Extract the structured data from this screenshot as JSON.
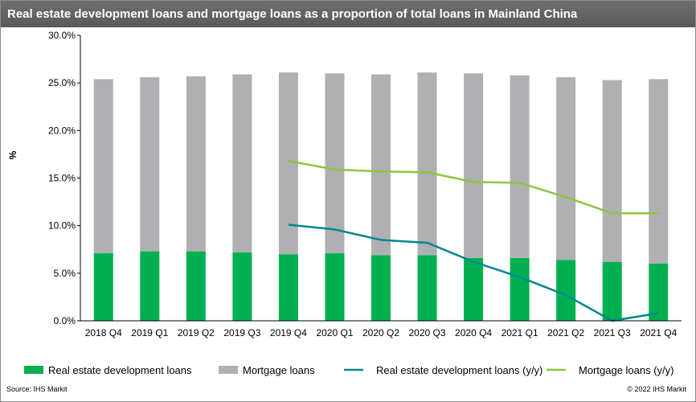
{
  "title": "Real estate development loans and mortgage loans as a proportion of total loans in Mainland China",
  "source": "Source: IHS Markit",
  "copyright": "© 2022  IHS Markit",
  "chart_data": {
    "type": "bar",
    "stacked": true,
    "title": "Real estate development loans and mortgage loans as a proportion of total loans in Mainland China",
    "xlabel": "",
    "ylabel": "%",
    "ylim": [
      0,
      30
    ],
    "yticks": [
      "0.0%",
      "5.0%",
      "10.0%",
      "15.0%",
      "20.0%",
      "25.0%",
      "30.0%"
    ],
    "grid": false,
    "legend_position": "bottom",
    "categories": [
      "2018 Q4",
      "2019 Q1",
      "2019 Q2",
      "2019 Q3",
      "2019 Q4",
      "2020 Q1",
      "2020 Q2",
      "2020 Q3",
      "2020 Q4",
      "2021 Q1",
      "2021 Q2",
      "2021 Q3",
      "2021 Q4"
    ],
    "series": [
      {
        "name": "Real estate development loans",
        "kind": "bar",
        "color": "#00b050",
        "values": [
          7.1,
          7.3,
          7.3,
          7.2,
          7.0,
          7.1,
          6.9,
          6.9,
          6.6,
          6.6,
          6.4,
          6.2,
          6.0
        ]
      },
      {
        "name": "Mortgage loans",
        "kind": "bar",
        "color": "#b0b0b3",
        "values": [
          18.3,
          18.3,
          18.4,
          18.7,
          19.1,
          18.9,
          19.0,
          19.2,
          19.4,
          19.2,
          19.2,
          19.1,
          19.4
        ]
      },
      {
        "name": "Real estate development loans (y/y)",
        "kind": "line",
        "color": "#00888f",
        "values": [
          null,
          null,
          null,
          null,
          10.1,
          9.6,
          8.5,
          8.2,
          6.2,
          4.6,
          2.7,
          0.0,
          0.8
        ]
      },
      {
        "name": "Mortgage loans (y/y)",
        "kind": "line",
        "color": "#8dc63f",
        "values": [
          null,
          null,
          null,
          null,
          16.8,
          15.9,
          15.7,
          15.6,
          14.6,
          14.5,
          13.0,
          11.3,
          11.3
        ]
      }
    ]
  }
}
